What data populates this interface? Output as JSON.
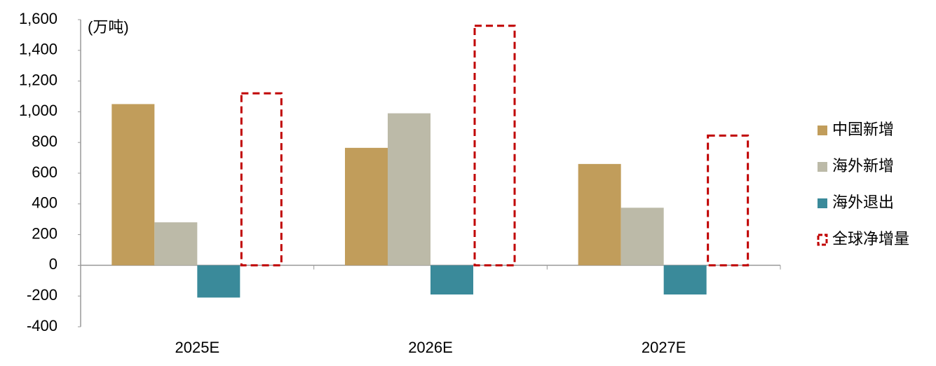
{
  "chart_data": {
    "type": "bar",
    "y_label": "(万吨)",
    "categories": [
      "2025E",
      "2026E",
      "2027E"
    ],
    "series": [
      {
        "name": "中国新增",
        "color": "#c19d5b",
        "values": [
          1050,
          765,
          660
        ]
      },
      {
        "name": "海外新增",
        "color": "#bcbaa8",
        "values": [
          280,
          990,
          375
        ]
      },
      {
        "name": "海外退出",
        "color": "#3a8a9a",
        "values": [
          -210,
          -190,
          -190
        ]
      },
      {
        "name": "全球净增量",
        "color": "#c00000",
        "style": "dashed",
        "values": [
          1120,
          1560,
          845
        ]
      }
    ],
    "ylim": [
      -400,
      1600
    ],
    "yticks": [
      -400,
      -200,
      0,
      200,
      400,
      600,
      800,
      {
        "value": 1000,
        "label": "1,000"
      },
      {
        "value": 1200,
        "label": "1,200"
      },
      {
        "value": 1400,
        "label": "1,400"
      },
      {
        "value": 1600,
        "label": "1,600"
      }
    ],
    "legend": "right"
  }
}
